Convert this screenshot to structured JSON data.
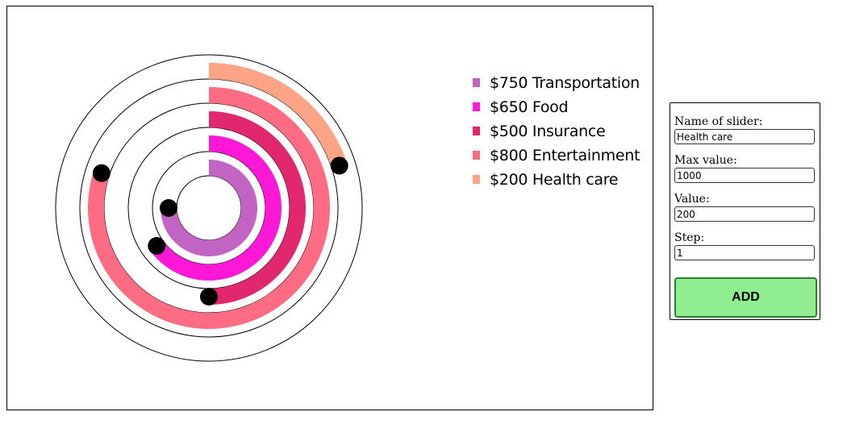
{
  "canvas": {
    "items": [
      {
        "name": "Transportation",
        "value": 750,
        "max": 1000,
        "color": "#c264c4",
        "label": "$750 Transportation"
      },
      {
        "name": "Food",
        "value": 650,
        "max": 1000,
        "color": "#fc18d6",
        "label": "$650 Food"
      },
      {
        "name": "Insurance",
        "value": 500,
        "max": 1000,
        "color": "#e1276e",
        "label": "$500 Insurance"
      },
      {
        "name": "Entertainment",
        "value": 800,
        "max": 1000,
        "color": "#fe6c84",
        "label": "$800 Entertainment"
      },
      {
        "name": "Health care",
        "value": 200,
        "max": 1000,
        "color": "#fea486",
        "label": "$200 Health care"
      }
    ]
  },
  "form": {
    "name_label": "Name of slider:",
    "name_value": "Health care",
    "max_label": "Max value:",
    "max_value": "1000",
    "value_label": "Value:",
    "value_value": "200",
    "step_label": "Step:",
    "step_value": "1",
    "add_label": "ADD"
  }
}
